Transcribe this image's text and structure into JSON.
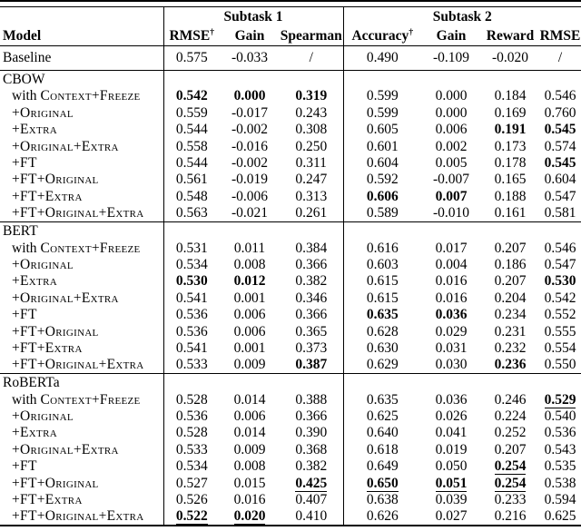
{
  "table": {
    "model_header": "Model",
    "groups": [
      {
        "label": "Subtask 1"
      },
      {
        "label": "Subtask 2"
      }
    ],
    "columns": [
      {
        "label": "RMSE",
        "sup": "†"
      },
      {
        "label": "Gain",
        "sup": ""
      },
      {
        "label": "Spearman",
        "sup": ""
      },
      {
        "label": "Accuracy",
        "sup": "†"
      },
      {
        "label": "Gain",
        "sup": ""
      },
      {
        "label": "Reward",
        "sup": ""
      },
      {
        "label": "RMSE",
        "sup": ""
      }
    ],
    "baseline": {
      "label": "Baseline",
      "values": [
        "0.575",
        "-0.033",
        "/",
        "0.490",
        "-0.109",
        "-0.020",
        "/"
      ],
      "bold": [],
      "underline": []
    },
    "sections": [
      {
        "name": "CBOW",
        "rows": [
          {
            "pre": "with ",
            "label": "Context+Freeze",
            "values": [
              "0.542",
              "0.000",
              "0.319",
              "0.599",
              "0.000",
              "0.184",
              "0.546"
            ],
            "bold": [
              0,
              1,
              2
            ],
            "underline": []
          },
          {
            "pre": "",
            "label": "+Original",
            "values": [
              "0.559",
              "-0.017",
              "0.243",
              "0.599",
              "0.000",
              "0.169",
              "0.760"
            ],
            "bold": [],
            "underline": []
          },
          {
            "pre": "",
            "label": "+Extra",
            "values": [
              "0.544",
              "-0.002",
              "0.308",
              "0.605",
              "0.006",
              "0.191",
              "0.545"
            ],
            "bold": [
              5,
              6
            ],
            "underline": []
          },
          {
            "pre": "",
            "label": "+Original+Extra",
            "values": [
              "0.558",
              "-0.016",
              "0.250",
              "0.601",
              "0.002",
              "0.173",
              "0.574"
            ],
            "bold": [],
            "underline": []
          },
          {
            "pre": "",
            "label": "+FT",
            "values": [
              "0.544",
              "-0.002",
              "0.311",
              "0.604",
              "0.005",
              "0.178",
              "0.545"
            ],
            "bold": [
              6
            ],
            "underline": []
          },
          {
            "pre": "",
            "label": "+FT+Original",
            "values": [
              "0.561",
              "-0.019",
              "0.247",
              "0.592",
              "-0.007",
              "0.165",
              "0.604"
            ],
            "bold": [],
            "underline": []
          },
          {
            "pre": "",
            "label": "+FT+Extra",
            "values": [
              "0.548",
              "-0.006",
              "0.313",
              "0.606",
              "0.007",
              "0.188",
              "0.547"
            ],
            "bold": [
              3,
              4
            ],
            "underline": []
          },
          {
            "pre": "",
            "label": "+FT+Original+Extra",
            "values": [
              "0.563",
              "-0.021",
              "0.261",
              "0.589",
              "-0.010",
              "0.161",
              "0.581"
            ],
            "bold": [],
            "underline": []
          }
        ]
      },
      {
        "name": "BERT",
        "rows": [
          {
            "pre": "with ",
            "label": "Context+Freeze",
            "values": [
              "0.531",
              "0.011",
              "0.384",
              "0.616",
              "0.017",
              "0.207",
              "0.546"
            ],
            "bold": [],
            "underline": []
          },
          {
            "pre": "",
            "label": "+Original",
            "values": [
              "0.534",
              "0.008",
              "0.366",
              "0.603",
              "0.004",
              "0.186",
              "0.547"
            ],
            "bold": [],
            "underline": []
          },
          {
            "pre": "",
            "label": "+Extra",
            "values": [
              "0.530",
              "0.012",
              "0.382",
              "0.615",
              "0.016",
              "0.207",
              "0.530"
            ],
            "bold": [
              0,
              1,
              6
            ],
            "underline": []
          },
          {
            "pre": "",
            "label": "+Original+Extra",
            "values": [
              "0.541",
              "0.001",
              "0.346",
              "0.615",
              "0.016",
              "0.204",
              "0.542"
            ],
            "bold": [],
            "underline": []
          },
          {
            "pre": "",
            "label": "+FT",
            "values": [
              "0.536",
              "0.006",
              "0.366",
              "0.635",
              "0.036",
              "0.234",
              "0.552"
            ],
            "bold": [
              3,
              4
            ],
            "underline": []
          },
          {
            "pre": "",
            "label": "+FT+Original",
            "values": [
              "0.536",
              "0.006",
              "0.365",
              "0.628",
              "0.029",
              "0.231",
              "0.555"
            ],
            "bold": [],
            "underline": []
          },
          {
            "pre": "",
            "label": "+FT+Extra",
            "values": [
              "0.541",
              "0.001",
              "0.373",
              "0.630",
              "0.031",
              "0.232",
              "0.554"
            ],
            "bold": [],
            "underline": []
          },
          {
            "pre": "",
            "label": "+FT+Original+Extra",
            "values": [
              "0.533",
              "0.009",
              "0.387",
              "0.629",
              "0.030",
              "0.236",
              "0.550"
            ],
            "bold": [
              2,
              5
            ],
            "underline": []
          }
        ]
      },
      {
        "name": "RoBERTa",
        "rows": [
          {
            "pre": "with ",
            "label": "Context+Freeze",
            "values": [
              "0.528",
              "0.014",
              "0.388",
              "0.635",
              "0.036",
              "0.246",
              "0.529"
            ],
            "bold": [
              6
            ],
            "underline": [
              6
            ]
          },
          {
            "pre": "",
            "label": "+Original",
            "values": [
              "0.536",
              "0.006",
              "0.366",
              "0.625",
              "0.026",
              "0.224",
              "0.540"
            ],
            "bold": [],
            "underline": []
          },
          {
            "pre": "",
            "label": "+Extra",
            "values": [
              "0.528",
              "0.014",
              "0.390",
              "0.640",
              "0.041",
              "0.252",
              "0.536"
            ],
            "bold": [],
            "underline": []
          },
          {
            "pre": "",
            "label": "+Original+Extra",
            "values": [
              "0.533",
              "0.009",
              "0.368",
              "0.618",
              "0.019",
              "0.207",
              "0.543"
            ],
            "bold": [],
            "underline": []
          },
          {
            "pre": "",
            "label": "+FT",
            "values": [
              "0.534",
              "0.008",
              "0.382",
              "0.649",
              "0.050",
              "0.254",
              "0.535"
            ],
            "bold": [
              5
            ],
            "underline": [
              5
            ]
          },
          {
            "pre": "",
            "label": "+FT+Original",
            "values": [
              "0.527",
              "0.015",
              "0.425",
              "0.650",
              "0.051",
              "0.254",
              "0.538"
            ],
            "bold": [
              2,
              3,
              4,
              5
            ],
            "underline": [
              2,
              3,
              4,
              5
            ]
          },
          {
            "pre": "",
            "label": "+FT+Extra",
            "values": [
              "0.526",
              "0.016",
              "0.407",
              "0.638",
              "0.039",
              "0.233",
              "0.594"
            ],
            "bold": [],
            "underline": []
          },
          {
            "pre": "",
            "label": "+FT+Original+Extra",
            "values": [
              "0.522",
              "0.020",
              "0.410",
              "0.626",
              "0.027",
              "0.216",
              "0.625"
            ],
            "bold": [
              0,
              1
            ],
            "underline": [
              0,
              1
            ]
          }
        ]
      }
    ]
  }
}
